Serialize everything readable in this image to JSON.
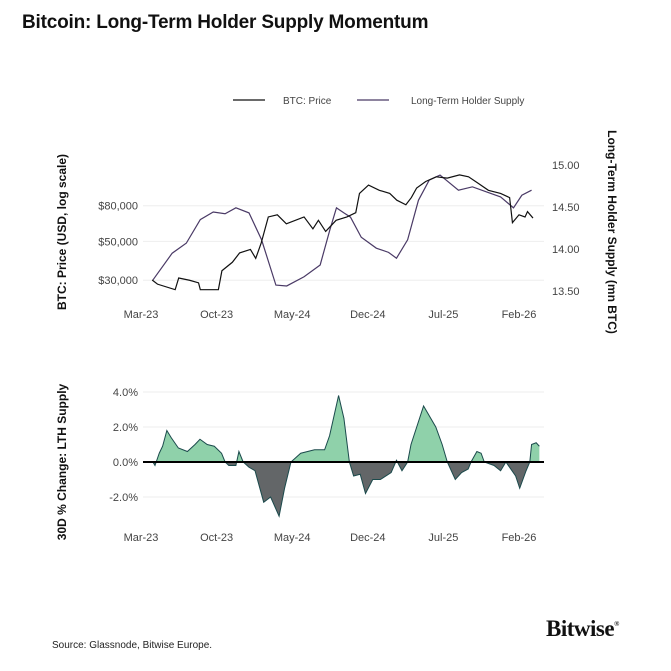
{
  "title": "Bitcoin: Long-Term Holder Supply Momentum",
  "source": "Source: Glassnode, Bitwise Europe.",
  "logo": {
    "text": "Bitwise",
    "mark": "®"
  },
  "colors": {
    "btc_price": "#111111",
    "lth_supply": "#4a3a66",
    "positive_fill": "#8fd1aa",
    "negative_fill": "#636668",
    "area_outline": "#1b4a4c"
  },
  "chart_data": [
    {
      "type": "line",
      "legend": {
        "position": "top-right",
        "items": [
          "BTC: Price",
          "Long-Term Holder Supply"
        ]
      },
      "xticks": [
        {
          "label": "Mar-23",
          "date": "2023-03-01"
        },
        {
          "label": "Oct-23",
          "date": "2023-10-01"
        },
        {
          "label": "May-24",
          "date": "2024-05-01"
        },
        {
          "label": "Dec-24",
          "date": "2024-12-01"
        },
        {
          "label": "Jul-25",
          "date": "2025-07-01"
        },
        {
          "label": "Feb-26",
          "date": "2026-02-01"
        }
      ],
      "ylabel_left": "BTC: Price (USD, log scale)",
      "ylabel_right": "Long-Term Holder Supply (mn BTC)",
      "left_axis": {
        "scale": "log",
        "ticks": [
          {
            "label": "$80,000",
            "value": 80000
          },
          {
            "label": "$50,000",
            "value": 50000
          },
          {
            "label": "$30,000",
            "value": 30000
          }
        ]
      },
      "right_axis": {
        "scale": "linear",
        "ticks": [
          {
            "label": "15.00",
            "value": 15.0
          },
          {
            "label": "14.50",
            "value": 14.5
          },
          {
            "label": "14.00",
            "value": 14.0
          },
          {
            "label": "13.50",
            "value": 13.5
          }
        ]
      },
      "grid": true,
      "series": [
        {
          "name": "BTC: Price",
          "axis": "left",
          "points": [
            [
              "2023-04-02",
              30100
            ],
            [
              "2023-04-17",
              28500
            ],
            [
              "2023-06-06",
              26500
            ],
            [
              "2023-06-16",
              30900
            ],
            [
              "2023-07-16",
              30000
            ],
            [
              "2023-08-11",
              29000
            ],
            [
              "2023-08-16",
              26500
            ],
            [
              "2023-10-06",
              26500
            ],
            [
              "2023-10-16",
              34000
            ],
            [
              "2023-11-15",
              38000
            ],
            [
              "2023-12-05",
              43000
            ],
            [
              "2024-01-05",
              45000
            ],
            [
              "2024-01-20",
              40000
            ],
            [
              "2024-02-05",
              49000
            ],
            [
              "2024-02-25",
              69000
            ],
            [
              "2024-03-20",
              71000
            ],
            [
              "2024-04-15",
              63000
            ],
            [
              "2024-06-04",
              69000
            ],
            [
              "2024-06-29",
              59000
            ],
            [
              "2024-07-14",
              66000
            ],
            [
              "2024-08-04",
              57000
            ],
            [
              "2024-09-03",
              66000
            ],
            [
              "2024-10-03",
              69000
            ],
            [
              "2024-10-28",
              73000
            ],
            [
              "2024-11-08",
              94000
            ],
            [
              "2024-12-03",
              105000
            ],
            [
              "2025-01-03",
              98000
            ],
            [
              "2025-02-02",
              94000
            ],
            [
              "2025-02-22",
              86000
            ],
            [
              "2025-03-17",
              81000
            ],
            [
              "2025-04-02",
              89000
            ],
            [
              "2025-04-17",
              101000
            ],
            [
              "2025-05-12",
              110000
            ],
            [
              "2025-06-11",
              117000
            ],
            [
              "2025-07-12",
              115000
            ],
            [
              "2025-08-16",
              120000
            ],
            [
              "2025-09-11",
              117000
            ],
            [
              "2025-10-06",
              108000
            ],
            [
              "2025-11-06",
              98000
            ],
            [
              "2025-12-10",
              94000
            ],
            [
              "2026-01-05",
              89000
            ],
            [
              "2026-01-13",
              64000
            ],
            [
              "2026-02-01",
              71000
            ],
            [
              "2026-02-18",
              69000
            ],
            [
              "2026-02-25",
              74000
            ],
            [
              "2026-03-10",
              68000
            ]
          ]
        },
        {
          "name": "Long-Term Holder Supply",
          "axis": "right",
          "points": [
            [
              "2023-04-04",
              13.63
            ],
            [
              "2023-05-28",
              13.95
            ],
            [
              "2023-07-07",
              14.07
            ],
            [
              "2023-08-16",
              14.35
            ],
            [
              "2023-09-22",
              14.44
            ],
            [
              "2023-10-25",
              14.42
            ],
            [
              "2023-11-25",
              14.49
            ],
            [
              "2024-01-01",
              14.43
            ],
            [
              "2024-02-06",
              14.11
            ],
            [
              "2024-03-16",
              13.57
            ],
            [
              "2024-04-16",
              13.56
            ],
            [
              "2024-06-04",
              13.67
            ],
            [
              "2024-07-19",
              13.81
            ],
            [
              "2024-08-16",
              14.23
            ],
            [
              "2024-09-04",
              14.49
            ],
            [
              "2024-09-25",
              14.43
            ],
            [
              "2024-10-13",
              14.38
            ],
            [
              "2024-11-13",
              14.14
            ],
            [
              "2024-12-25",
              14.01
            ],
            [
              "2025-01-29",
              13.96
            ],
            [
              "2025-02-21",
              13.89
            ],
            [
              "2025-03-22",
              14.11
            ],
            [
              "2025-04-22",
              14.58
            ],
            [
              "2025-05-22",
              14.82
            ],
            [
              "2025-06-22",
              14.88
            ],
            [
              "2025-08-13",
              14.7
            ],
            [
              "2025-09-22",
              14.74
            ],
            [
              "2025-11-01",
              14.68
            ],
            [
              "2025-12-10",
              14.62
            ],
            [
              "2026-01-16",
              14.49
            ],
            [
              "2026-02-09",
              14.64
            ],
            [
              "2026-03-06",
              14.7
            ]
          ]
        }
      ]
    },
    {
      "type": "area",
      "ylabel": "30D % Change: LTH Supply",
      "xticks": [
        {
          "label": "Mar-23",
          "date": "2023-03-01"
        },
        {
          "label": "Oct-23",
          "date": "2023-10-01"
        },
        {
          "label": "May-24",
          "date": "2024-05-01"
        },
        {
          "label": "Dec-24",
          "date": "2024-12-01"
        },
        {
          "label": "Jul-25",
          "date": "2025-07-01"
        },
        {
          "label": "Feb-26",
          "date": "2026-02-01"
        }
      ],
      "yticks": [
        {
          "label": "4.0%",
          "value": 4
        },
        {
          "label": "2.0%",
          "value": 2
        },
        {
          "label": "0.0%",
          "value": 0
        },
        {
          "label": "-2.0%",
          "value": -2
        }
      ],
      "grid": true,
      "series": [
        {
          "points": [
            [
              "2023-04-04",
              0.0
            ],
            [
              "2023-04-10",
              -0.2
            ],
            [
              "2023-04-22",
              0.5
            ],
            [
              "2023-05-01",
              0.9
            ],
            [
              "2023-05-13",
              1.8
            ],
            [
              "2023-05-25",
              1.4
            ],
            [
              "2023-06-15",
              0.8
            ],
            [
              "2023-07-10",
              0.6
            ],
            [
              "2023-08-01",
              1.0
            ],
            [
              "2023-08-15",
              1.3
            ],
            [
              "2023-09-05",
              1.0
            ],
            [
              "2023-09-25",
              0.9
            ],
            [
              "2023-10-15",
              0.5
            ],
            [
              "2023-10-25",
              0.0
            ],
            [
              "2023-11-05",
              -0.2
            ],
            [
              "2023-11-25",
              -0.2
            ],
            [
              "2023-12-03",
              0.6
            ],
            [
              "2023-12-15",
              0.0
            ],
            [
              "2024-01-01",
              -0.3
            ],
            [
              "2024-01-18",
              -0.5
            ],
            [
              "2024-02-12",
              -2.3
            ],
            [
              "2024-03-01",
              -2.0
            ],
            [
              "2024-03-25",
              -3.1
            ],
            [
              "2024-04-10",
              -1.5
            ],
            [
              "2024-04-28",
              0.0
            ],
            [
              "2024-05-25",
              0.5
            ],
            [
              "2024-07-03",
              0.7
            ],
            [
              "2024-08-01",
              0.7
            ],
            [
              "2024-08-15",
              1.5
            ],
            [
              "2024-09-10",
              3.8
            ],
            [
              "2024-09-25",
              2.5
            ],
            [
              "2024-10-10",
              0.0
            ],
            [
              "2024-10-22",
              -0.8
            ],
            [
              "2024-11-10",
              -0.7
            ],
            [
              "2024-11-25",
              -1.8
            ],
            [
              "2024-12-15",
              -1.0
            ],
            [
              "2025-01-06",
              -1.0
            ],
            [
              "2025-02-06",
              -0.6
            ],
            [
              "2025-02-21",
              0.1
            ],
            [
              "2025-03-06",
              -0.5
            ],
            [
              "2025-03-22",
              0.0
            ],
            [
              "2025-04-01",
              1.0
            ],
            [
              "2025-05-06",
              3.2
            ],
            [
              "2025-06-10",
              2.0
            ],
            [
              "2025-06-28",
              1.0
            ],
            [
              "2025-07-12",
              0.0
            ],
            [
              "2025-08-04",
              -1.0
            ],
            [
              "2025-08-22",
              -0.6
            ],
            [
              "2025-09-10",
              -0.4
            ],
            [
              "2025-09-18",
              0.0
            ],
            [
              "2025-10-04",
              0.6
            ],
            [
              "2025-10-16",
              0.5
            ],
            [
              "2025-10-25",
              0.0
            ],
            [
              "2025-11-22",
              -0.2
            ],
            [
              "2025-12-10",
              -0.5
            ],
            [
              "2025-12-25",
              0.0
            ],
            [
              "2026-01-22",
              -0.8
            ],
            [
              "2026-02-03",
              -1.5
            ],
            [
              "2026-02-21",
              -0.5
            ],
            [
              "2026-03-01",
              0.0
            ],
            [
              "2026-03-06",
              1.0
            ],
            [
              "2026-03-19",
              1.1
            ],
            [
              "2026-03-28",
              0.9
            ]
          ]
        }
      ]
    }
  ]
}
